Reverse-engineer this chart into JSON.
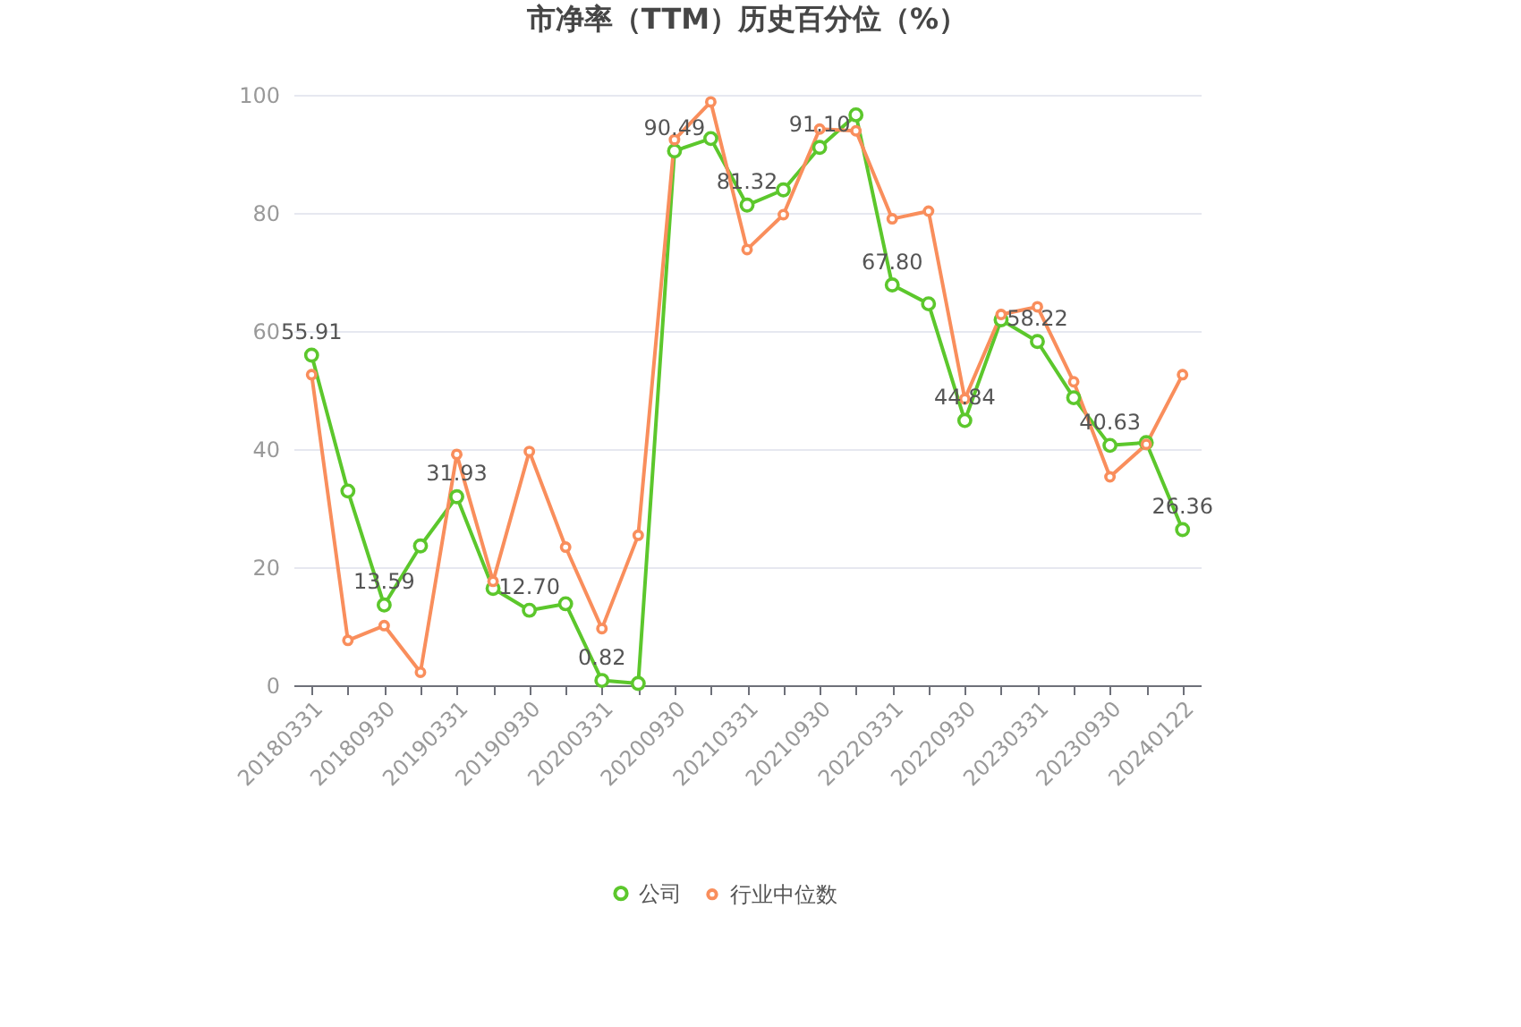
{
  "chart_data": {
    "type": "line",
    "title": "市净率（TTM）历史百分位（%）",
    "categories": [
      "20180331",
      null,
      "20180930",
      null,
      "20190331",
      null,
      "20190930",
      null,
      "20200331",
      null,
      "20200930",
      null,
      "20210331",
      null,
      "20210930",
      null,
      "20220331",
      null,
      "20220930",
      null,
      "20230331",
      null,
      "20230930",
      null,
      "20240122"
    ],
    "series": [
      {
        "name": "公司",
        "color": "#5cc72c",
        "values": [
          55.91,
          32.9,
          13.59,
          23.6,
          31.93,
          16.4,
          12.7,
          13.8,
          0.82,
          0.3,
          90.49,
          92.6,
          81.32,
          83.9,
          91.1,
          96.6,
          67.8,
          64.6,
          44.84,
          61.9,
          58.22,
          48.7,
          40.63,
          41.1,
          26.36
        ],
        "value_labels": [
          "55.91",
          null,
          "13.59",
          null,
          "31.93",
          null,
          "12.70",
          null,
          "0.82",
          null,
          "90.49",
          null,
          "81.32",
          null,
          "91.10",
          null,
          "67.80",
          null,
          "44.84",
          null,
          "58.22",
          null,
          "40.63",
          null,
          "26.36"
        ]
      },
      {
        "name": "行业中位数",
        "color": "#f98e5c",
        "values": [
          52.6,
          7.6,
          10.1,
          2.2,
          39.1,
          17.6,
          39.6,
          23.4,
          9.6,
          25.4,
          92.4,
          98.8,
          73.8,
          79.7,
          94.2,
          93.9,
          79.0,
          80.3,
          48.5,
          62.8,
          64.1,
          51.4,
          35.3,
          40.8,
          52.6
        ]
      }
    ],
    "ylim": [
      0,
      100
    ],
    "yticks": [
      0,
      20,
      40,
      60,
      80,
      100
    ],
    "grid": "y",
    "legend": "bottom",
    "marker": "circle",
    "line_style": "solid"
  }
}
